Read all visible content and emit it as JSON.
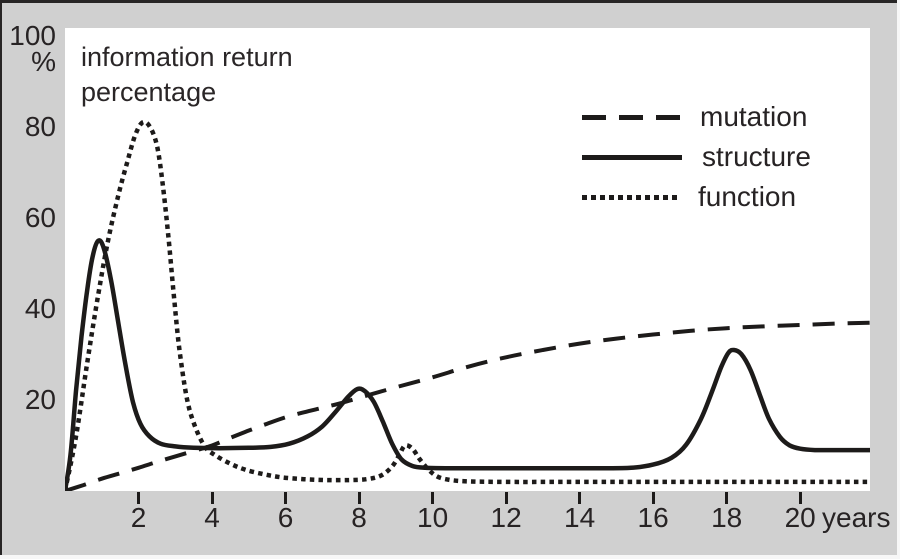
{
  "figure": {
    "title_line1": "information return",
    "title_line2": "percentage"
  },
  "legend": {
    "items": [
      {
        "label": "mutation",
        "style": "dashed"
      },
      {
        "label": "structure",
        "style": "solid"
      },
      {
        "label": "function",
        "style": "dotted"
      }
    ]
  },
  "colors": {
    "background": "#d0d0d0",
    "plot_background": "#ffffff",
    "line_ink": "#1d1b1a",
    "text_ink": "#272324",
    "frame_dark": "#272525",
    "frame_light": "#f7f7f7"
  },
  "chart_data": {
    "type": "line",
    "title": "information return percentage",
    "xlabel": "years",
    "ylabel": "%",
    "x_unit": "years",
    "xlim": [
      0,
      21.9
    ],
    "ylim": [
      0,
      101.8
    ],
    "x_ticks": [
      2,
      4,
      6,
      8,
      10,
      12,
      14,
      16,
      18,
      20
    ],
    "y_ticks": [
      100,
      80,
      60,
      40,
      20
    ],
    "grid": false,
    "legend_position": "top-right",
    "series": [
      {
        "name": "mutation",
        "style": "dashed",
        "stroke_width": 4,
        "dash": "22 13",
        "points": [
          [
            0,
            0
          ],
          [
            0.5,
            1.3
          ],
          [
            1,
            2.7
          ],
          [
            1.5,
            3.9
          ],
          [
            2,
            5.1
          ],
          [
            2.5,
            6.4
          ],
          [
            3,
            7.6
          ],
          [
            3.5,
            8.8
          ],
          [
            4,
            10
          ],
          [
            4.5,
            11.7
          ],
          [
            5,
            13.3
          ],
          [
            5.5,
            14.8
          ],
          [
            6,
            16.2
          ],
          [
            6.5,
            17.3
          ],
          [
            7,
            18.3
          ],
          [
            7.5,
            19.3
          ],
          [
            8,
            20.5
          ],
          [
            9,
            22.8
          ],
          [
            10,
            25
          ],
          [
            11,
            27.4
          ],
          [
            12,
            29.4
          ],
          [
            13,
            31
          ],
          [
            14,
            32.4
          ],
          [
            15,
            33.5
          ],
          [
            16,
            34.4
          ],
          [
            17,
            35.2
          ],
          [
            18,
            35.8
          ],
          [
            19,
            36.2
          ],
          [
            20,
            36.5
          ],
          [
            21,
            36.8
          ],
          [
            21.9,
            37
          ]
        ]
      },
      {
        "name": "structure",
        "style": "solid",
        "stroke_width": 4.5,
        "dash": "",
        "points": [
          [
            0,
            0
          ],
          [
            0.15,
            8
          ],
          [
            0.3,
            22
          ],
          [
            0.45,
            34
          ],
          [
            0.6,
            44
          ],
          [
            0.75,
            51.5
          ],
          [
            0.9,
            55
          ],
          [
            1.05,
            53.5
          ],
          [
            1.25,
            46.5
          ],
          [
            1.45,
            37
          ],
          [
            1.65,
            27.5
          ],
          [
            1.85,
            19.5
          ],
          [
            2.05,
            14.8
          ],
          [
            2.3,
            12
          ],
          [
            2.6,
            10.4
          ],
          [
            3,
            9.8
          ],
          [
            3.5,
            9.5
          ],
          [
            4.2,
            9.4
          ],
          [
            5,
            9.5
          ],
          [
            5.6,
            9.7
          ],
          [
            6.1,
            10.4
          ],
          [
            6.6,
            12
          ],
          [
            7,
            14.2
          ],
          [
            7.35,
            17.3
          ],
          [
            7.7,
            20.7
          ],
          [
            7.95,
            22.4
          ],
          [
            8.15,
            22
          ],
          [
            8.4,
            19.6
          ],
          [
            8.65,
            15.2
          ],
          [
            8.9,
            10.4
          ],
          [
            9.15,
            7
          ],
          [
            9.45,
            5.5
          ],
          [
            9.8,
            5.1
          ],
          [
            10.5,
            5
          ],
          [
            11.5,
            5
          ],
          [
            13,
            5
          ],
          [
            14.5,
            5
          ],
          [
            15.4,
            5.1
          ],
          [
            16,
            5.8
          ],
          [
            16.5,
            7.3
          ],
          [
            16.9,
            10.2
          ],
          [
            17.3,
            15.8
          ],
          [
            17.6,
            21.8
          ],
          [
            17.85,
            27.2
          ],
          [
            18.05,
            30.4
          ],
          [
            18.2,
            31
          ],
          [
            18.4,
            30.1
          ],
          [
            18.65,
            26.6
          ],
          [
            18.9,
            21.2
          ],
          [
            19.15,
            15.9
          ],
          [
            19.45,
            11.9
          ],
          [
            19.7,
            10.1
          ],
          [
            20,
            9.3
          ],
          [
            20.4,
            9
          ],
          [
            21,
            9
          ],
          [
            21.9,
            9
          ]
        ]
      },
      {
        "name": "function",
        "style": "dotted",
        "stroke_width": 4.5,
        "dash": "4.5 4.2",
        "points": [
          [
            0,
            0
          ],
          [
            0.3,
            12
          ],
          [
            0.6,
            28
          ],
          [
            0.9,
            43
          ],
          [
            1.17,
            55
          ],
          [
            1.45,
            65
          ],
          [
            1.7,
            72.5
          ],
          [
            1.9,
            78
          ],
          [
            2.1,
            81
          ],
          [
            2.3,
            80.2
          ],
          [
            2.5,
            76
          ],
          [
            2.65,
            68
          ],
          [
            2.8,
            57
          ],
          [
            2.95,
            44
          ],
          [
            3.1,
            32
          ],
          [
            3.3,
            21
          ],
          [
            3.5,
            15
          ],
          [
            3.8,
            9.8
          ],
          [
            4.1,
            7.8
          ],
          [
            4.5,
            6
          ],
          [
            4.9,
            4.7
          ],
          [
            5.4,
            3.7
          ],
          [
            5.9,
            3
          ],
          [
            6.5,
            2.6
          ],
          [
            7.1,
            2.4
          ],
          [
            7.7,
            2.4
          ],
          [
            8.2,
            2.6
          ],
          [
            8.6,
            3.4
          ],
          [
            8.9,
            5.4
          ],
          [
            9.1,
            8
          ],
          [
            9.25,
            10
          ],
          [
            9.45,
            9.3
          ],
          [
            9.65,
            7
          ],
          [
            9.9,
            4.6
          ],
          [
            10.15,
            3.1
          ],
          [
            10.5,
            2.4
          ],
          [
            11,
            2.1
          ],
          [
            12,
            2
          ],
          [
            13.5,
            2
          ],
          [
            15,
            2
          ],
          [
            16.5,
            2
          ],
          [
            18,
            2
          ],
          [
            19.5,
            2
          ],
          [
            21,
            2
          ],
          [
            21.9,
            2
          ]
        ]
      }
    ]
  }
}
